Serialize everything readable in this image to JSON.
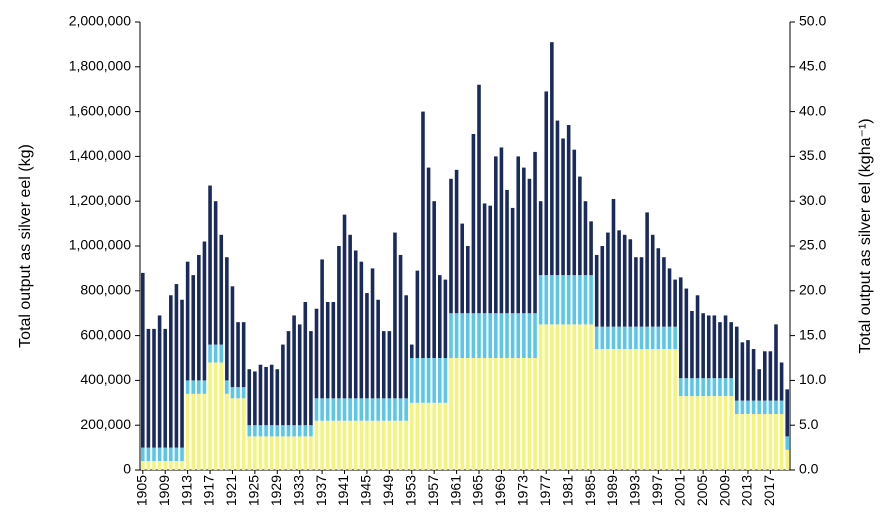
{
  "chart_data": {
    "type": "stacked_bar",
    "y_label": "Total output as silver eel (kg)",
    "y2_label": "Total output as silver eel (kgha⁻¹)",
    "categories": [
      "1905",
      null,
      null,
      null,
      "1909",
      null,
      null,
      null,
      "1913",
      null,
      null,
      null,
      "1917",
      null,
      null,
      null,
      "1921",
      null,
      null,
      null,
      "1925",
      null,
      null,
      null,
      "1929",
      null,
      null,
      null,
      "1933",
      null,
      null,
      null,
      "1937",
      null,
      null,
      null,
      "1941",
      null,
      null,
      null,
      "1945",
      null,
      null,
      null,
      "1949",
      null,
      null,
      null,
      "1953",
      null,
      null,
      null,
      "1957",
      null,
      null,
      null,
      "1961",
      null,
      null,
      null,
      "1965",
      null,
      null,
      null,
      "1969",
      null,
      null,
      null,
      "1973",
      null,
      null,
      null,
      "1977",
      null,
      null,
      null,
      "1981",
      null,
      null,
      null,
      "1985",
      null,
      null,
      null,
      "1989",
      null,
      null,
      null,
      "1993",
      null,
      null,
      null,
      "1997",
      null,
      null,
      null,
      "2001",
      null,
      null,
      null,
      "2005",
      null,
      null,
      null,
      "2009",
      null,
      null,
      null,
      "2013",
      null,
      null,
      null,
      "2017",
      null,
      null,
      null
    ],
    "series": [
      {
        "color": "#f4f47c",
        "values": [
          40000,
          40000,
          40000,
          40000,
          40000,
          40000,
          40000,
          40000,
          340000,
          340000,
          340000,
          340000,
          480000,
          480000,
          480000,
          340000,
          320000,
          320000,
          320000,
          150000,
          150000,
          150000,
          150000,
          150000,
          150000,
          150000,
          150000,
          150000,
          150000,
          150000,
          150000,
          220000,
          220000,
          220000,
          220000,
          220000,
          220000,
          220000,
          220000,
          220000,
          220000,
          220000,
          220000,
          220000,
          220000,
          220000,
          220000,
          220000,
          300000,
          300000,
          300000,
          300000,
          300000,
          300000,
          300000,
          500000,
          500000,
          500000,
          500000,
          500000,
          500000,
          500000,
          500000,
          500000,
          500000,
          500000,
          500000,
          500000,
          500000,
          500000,
          500000,
          650000,
          650000,
          650000,
          650000,
          650000,
          650000,
          650000,
          650000,
          650000,
          650000,
          540000,
          540000,
          540000,
          540000,
          540000,
          540000,
          540000,
          540000,
          540000,
          540000,
          540000,
          540000,
          540000,
          540000,
          540000,
          330000,
          330000,
          330000,
          330000,
          330000,
          330000,
          330000,
          330000,
          330000,
          330000,
          250000,
          250000,
          250000,
          250000,
          250000,
          250000,
          250000,
          250000,
          250000,
          90000
        ]
      },
      {
        "color": "#5cc6e8",
        "values": [
          60000,
          60000,
          60000,
          60000,
          60000,
          60000,
          60000,
          60000,
          60000,
          60000,
          60000,
          60000,
          80000,
          80000,
          80000,
          60000,
          50000,
          50000,
          50000,
          50000,
          50000,
          50000,
          50000,
          50000,
          50000,
          50000,
          50000,
          50000,
          50000,
          50000,
          50000,
          100000,
          100000,
          100000,
          100000,
          100000,
          100000,
          100000,
          100000,
          100000,
          100000,
          100000,
          100000,
          100000,
          100000,
          100000,
          100000,
          100000,
          200000,
          200000,
          200000,
          200000,
          200000,
          200000,
          200000,
          200000,
          200000,
          200000,
          200000,
          200000,
          200000,
          200000,
          200000,
          200000,
          200000,
          200000,
          200000,
          200000,
          200000,
          200000,
          200000,
          220000,
          220000,
          220000,
          220000,
          220000,
          220000,
          220000,
          220000,
          220000,
          220000,
          100000,
          100000,
          100000,
          100000,
          100000,
          100000,
          100000,
          100000,
          100000,
          100000,
          100000,
          100000,
          100000,
          100000,
          100000,
          80000,
          80000,
          80000,
          80000,
          80000,
          80000,
          80000,
          80000,
          80000,
          80000,
          60000,
          60000,
          60000,
          60000,
          60000,
          60000,
          60000,
          60000,
          60000,
          60000
        ]
      },
      {
        "color": "#1b2a5c",
        "values": [
          780000,
          530000,
          530000,
          590000,
          530000,
          680000,
          730000,
          660000,
          530000,
          470000,
          560000,
          620000,
          710000,
          640000,
          490000,
          550000,
          450000,
          290000,
          290000,
          250000,
          240000,
          270000,
          260000,
          270000,
          250000,
          360000,
          420000,
          490000,
          450000,
          550000,
          420000,
          400000,
          620000,
          430000,
          430000,
          680000,
          820000,
          730000,
          660000,
          610000,
          470000,
          580000,
          440000,
          300000,
          300000,
          740000,
          640000,
          460000,
          60000,
          390000,
          1100000,
          850000,
          700000,
          370000,
          350000,
          600000,
          640000,
          400000,
          300000,
          800000,
          1020000,
          490000,
          480000,
          700000,
          740000,
          550000,
          470000,
          700000,
          650000,
          600000,
          720000,
          330000,
          820000,
          1040000,
          690000,
          610000,
          670000,
          560000,
          440000,
          330000,
          240000,
          320000,
          360000,
          420000,
          570000,
          430000,
          410000,
          390000,
          310000,
          310000,
          510000,
          410000,
          350000,
          310000,
          260000,
          210000,
          450000,
          400000,
          300000,
          370000,
          290000,
          280000,
          280000,
          250000,
          280000,
          250000,
          330000,
          260000,
          270000,
          230000,
          140000,
          220000,
          220000,
          340000,
          170000,
          210000
        ]
      }
    ],
    "ylim": [
      0,
      2000000
    ],
    "yticks": [
      0,
      {
        "value": 200000,
        "label": "200,000"
      },
      {
        "value": 400000,
        "label": "400,000"
      },
      {
        "value": 600000,
        "label": "600,000"
      },
      {
        "value": 800000,
        "label": "800,000"
      },
      {
        "value": 1000000,
        "label": "1,000,000"
      },
      {
        "value": 1200000,
        "label": "1,200,000"
      },
      {
        "value": 1400000,
        "label": "1,400,000"
      },
      {
        "value": 1600000,
        "label": "1,600,000"
      },
      {
        "value": 1800000,
        "label": "1,800,000"
      },
      {
        "value": 2000000,
        "label": "2,000,000"
      }
    ],
    "y2lim": [
      0,
      50
    ],
    "y2ticks": [
      {
        "value": 0,
        "label": "0.0"
      },
      {
        "value": 5,
        "label": "5.0"
      },
      {
        "value": 10,
        "label": "10.0"
      },
      {
        "value": 15,
        "label": "15.0"
      },
      {
        "value": 20,
        "label": "20.0"
      },
      {
        "value": 25,
        "label": "25.0"
      },
      {
        "value": 30,
        "label": "30.0"
      },
      {
        "value": 35,
        "label": "35.0"
      },
      {
        "value": 40,
        "label": "40.0"
      },
      {
        "value": 45,
        "label": "45.0"
      },
      {
        "value": 50,
        "label": "50.0"
      }
    ]
  }
}
